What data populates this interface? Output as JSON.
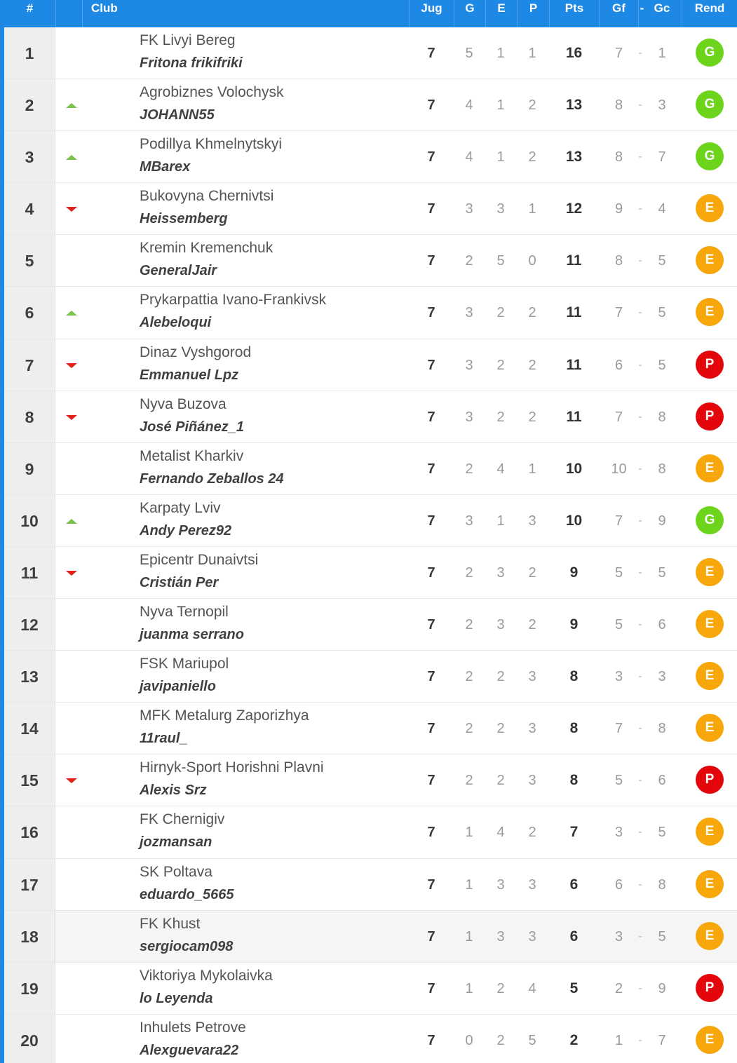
{
  "colors": {
    "header_bg": "#1e88e5",
    "trend_up": "#7bc24a",
    "trend_down": "#e0211a",
    "badge": {
      "G": "#6cd41a",
      "E": "#f7a70a",
      "P": "#e3060b"
    }
  },
  "header": {
    "pos": "#",
    "club": "Club",
    "jug": "Jug",
    "g": "G",
    "e": "E",
    "p": "P",
    "pts": "Pts",
    "gf": "Gf",
    "dash": "-",
    "gc": "Gc",
    "rend": "Rend"
  },
  "rows": [
    {
      "pos": "1",
      "trend": "none",
      "club": "FK Livyi Bereg",
      "manager": "Fritona frikifriki",
      "jug": "7",
      "g": "5",
      "e": "1",
      "p": "1",
      "pts": "16",
      "gf": "7",
      "dash": "-",
      "gc": "1",
      "rend": "G"
    },
    {
      "pos": "2",
      "trend": "up",
      "club": "Agrobiznes Volochysk",
      "manager": "JOHANN55",
      "jug": "7",
      "g": "4",
      "e": "1",
      "p": "2",
      "pts": "13",
      "gf": "8",
      "dash": "-",
      "gc": "3",
      "rend": "G"
    },
    {
      "pos": "3",
      "trend": "up",
      "club": "Podillya Khmelnytskyi",
      "manager": "MBarex",
      "jug": "7",
      "g": "4",
      "e": "1",
      "p": "2",
      "pts": "13",
      "gf": "8",
      "dash": "-",
      "gc": "7",
      "rend": "G"
    },
    {
      "pos": "4",
      "trend": "down",
      "club": "Bukovyna Chernivtsi",
      "manager": "Heissemberg",
      "jug": "7",
      "g": "3",
      "e": "3",
      "p": "1",
      "pts": "12",
      "gf": "9",
      "dash": "-",
      "gc": "4",
      "rend": "E"
    },
    {
      "pos": "5",
      "trend": "none",
      "club": "Kremin Kremenchuk",
      "manager": "GeneralJair",
      "jug": "7",
      "g": "2",
      "e": "5",
      "p": "0",
      "pts": "11",
      "gf": "8",
      "dash": "-",
      "gc": "5",
      "rend": "E"
    },
    {
      "pos": "6",
      "trend": "up",
      "club": "Prykarpattia Ivano-Frankivsk",
      "manager": "Alebeloqui",
      "jug": "7",
      "g": "3",
      "e": "2",
      "p": "2",
      "pts": "11",
      "gf": "7",
      "dash": "-",
      "gc": "5",
      "rend": "E"
    },
    {
      "pos": "7",
      "trend": "down",
      "club": "Dinaz Vyshgorod",
      "manager": "Emmanuel Lpz",
      "jug": "7",
      "g": "3",
      "e": "2",
      "p": "2",
      "pts": "11",
      "gf": "6",
      "dash": "-",
      "gc": "5",
      "rend": "P"
    },
    {
      "pos": "8",
      "trend": "down",
      "club": "Nyva Buzova",
      "manager": "José Piñánez_1",
      "jug": "7",
      "g": "3",
      "e": "2",
      "p": "2",
      "pts": "11",
      "gf": "7",
      "dash": "-",
      "gc": "8",
      "rend": "P"
    },
    {
      "pos": "9",
      "trend": "none",
      "club": "Metalist Kharkiv",
      "manager": "Fernando Zeballos 24",
      "jug": "7",
      "g": "2",
      "e": "4",
      "p": "1",
      "pts": "10",
      "gf": "10",
      "dash": "-",
      "gc": "8",
      "rend": "E"
    },
    {
      "pos": "10",
      "trend": "up",
      "club": "Karpaty Lviv",
      "manager": "Andy Perez92",
      "jug": "7",
      "g": "3",
      "e": "1",
      "p": "3",
      "pts": "10",
      "gf": "7",
      "dash": "-",
      "gc": "9",
      "rend": "G"
    },
    {
      "pos": "11",
      "trend": "down",
      "club": "Epicentr Dunaivtsi",
      "manager": "Cristián Per",
      "jug": "7",
      "g": "2",
      "e": "3",
      "p": "2",
      "pts": "9",
      "gf": "5",
      "dash": "-",
      "gc": "5",
      "rend": "E"
    },
    {
      "pos": "12",
      "trend": "none",
      "club": "Nyva Ternopil",
      "manager": "juanma serrano",
      "jug": "7",
      "g": "2",
      "e": "3",
      "p": "2",
      "pts": "9",
      "gf": "5",
      "dash": "-",
      "gc": "6",
      "rend": "E"
    },
    {
      "pos": "13",
      "trend": "none",
      "club": "FSK Mariupol",
      "manager": "javipaniello",
      "jug": "7",
      "g": "2",
      "e": "2",
      "p": "3",
      "pts": "8",
      "gf": "3",
      "dash": "-",
      "gc": "3",
      "rend": "E"
    },
    {
      "pos": "14",
      "trend": "none",
      "club": "MFK Metalurg Zaporizhya",
      "manager": "11raul_",
      "jug": "7",
      "g": "2",
      "e": "2",
      "p": "3",
      "pts": "8",
      "gf": "7",
      "dash": "-",
      "gc": "8",
      "rend": "E"
    },
    {
      "pos": "15",
      "trend": "down",
      "club": "Hirnyk-Sport Horishni Plavni",
      "manager": "Alexis Srz",
      "jug": "7",
      "g": "2",
      "e": "2",
      "p": "3",
      "pts": "8",
      "gf": "5",
      "dash": "-",
      "gc": "6",
      "rend": "P"
    },
    {
      "pos": "16",
      "trend": "none",
      "club": "FK Chernigiv",
      "manager": "jozmansan",
      "jug": "7",
      "g": "1",
      "e": "4",
      "p": "2",
      "pts": "7",
      "gf": "3",
      "dash": "-",
      "gc": "5",
      "rend": "E"
    },
    {
      "pos": "17",
      "trend": "none",
      "club": "SK Poltava",
      "manager": "eduardo_5665",
      "jug": "7",
      "g": "1",
      "e": "3",
      "p": "3",
      "pts": "6",
      "gf": "6",
      "dash": "-",
      "gc": "8",
      "rend": "E"
    },
    {
      "pos": "18",
      "trend": "none",
      "club": "FK Khust",
      "manager": "sergiocam098",
      "jug": "7",
      "g": "1",
      "e": "3",
      "p": "3",
      "pts": "6",
      "gf": "3",
      "dash": "-",
      "gc": "5",
      "rend": "E",
      "highlighted": true
    },
    {
      "pos": "19",
      "trend": "none",
      "club": "Viktoriya Mykolaivka",
      "manager": "lo Leyenda",
      "jug": "7",
      "g": "1",
      "e": "2",
      "p": "4",
      "pts": "5",
      "gf": "2",
      "dash": "-",
      "gc": "9",
      "rend": "P"
    },
    {
      "pos": "20",
      "trend": "none",
      "club": "Inhulets Petrove",
      "manager": "Alexguevara22",
      "jug": "7",
      "g": "0",
      "e": "2",
      "p": "5",
      "pts": "2",
      "gf": "1",
      "dash": "-",
      "gc": "7",
      "rend": "E"
    }
  ]
}
